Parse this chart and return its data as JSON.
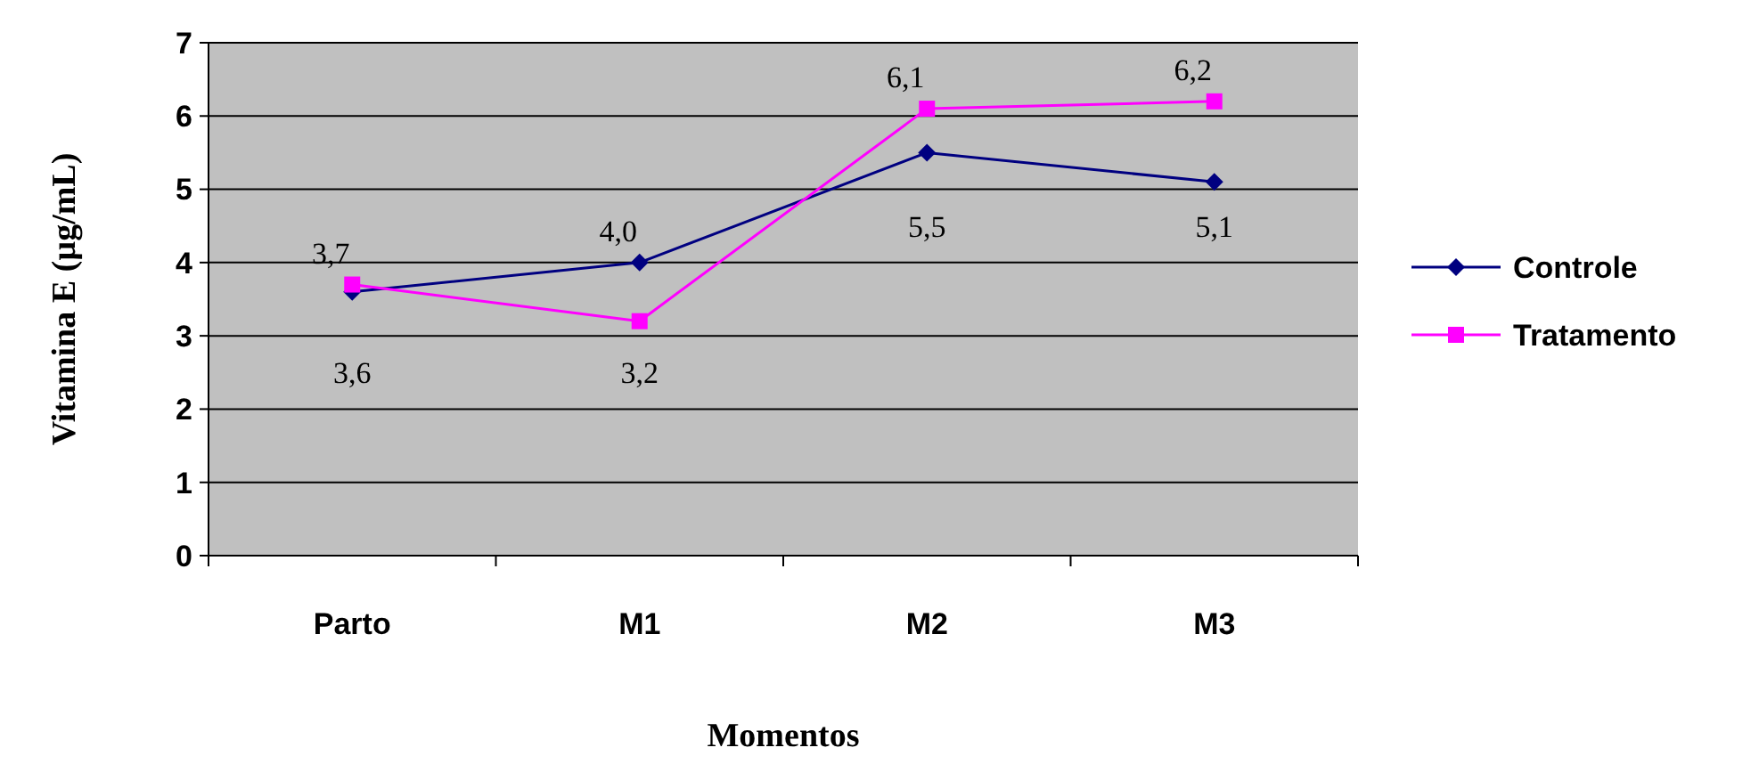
{
  "chart_data": {
    "type": "line",
    "xlabel": "Momentos",
    "ylabel": "Vitamina E (µg/mL)",
    "categories": [
      "Parto",
      "M1",
      "M2",
      "M3"
    ],
    "series": [
      {
        "name": "Controle",
        "color": "#000080",
        "values": [
          3.6,
          4.0,
          5.5,
          5.1
        ],
        "value_labels": [
          "3,6",
          "4,0",
          "5,5",
          "5,1"
        ],
        "marker": "diamond"
      },
      {
        "name": "Tratamento",
        "color": "#ff00ff",
        "values": [
          3.7,
          3.2,
          6.1,
          6.2
        ],
        "value_labels": [
          "3,7",
          "3,2",
          "6,1",
          "6,2"
        ],
        "marker": "square"
      }
    ],
    "ylim": [
      0,
      7
    ],
    "yticks": [
      0,
      1,
      2,
      3,
      4,
      5,
      6,
      7
    ],
    "grid": "y",
    "legend": "right",
    "line_style": "solid"
  }
}
